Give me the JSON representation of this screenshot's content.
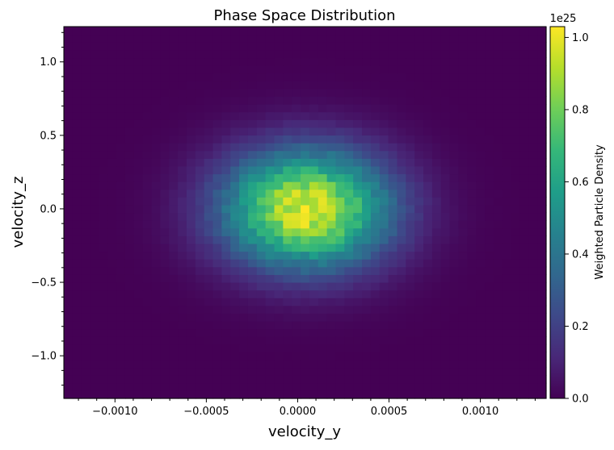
{
  "chart_data": {
    "type": "heatmap",
    "title": "Phase Space Distribution",
    "xlabel": "velocity_y",
    "ylabel": "velocity_z",
    "xlim": [
      -0.00128,
      0.00136
    ],
    "ylim": [
      -1.29,
      1.24
    ],
    "x_ticks": [
      {
        "value": -0.001,
        "label": "−0.0010"
      },
      {
        "value": -0.0005,
        "label": "−0.0005"
      },
      {
        "value": 0.0,
        "label": "0.0000"
      },
      {
        "value": 0.0005,
        "label": "0.0005"
      },
      {
        "value": 0.001,
        "label": "0.0010"
      }
    ],
    "y_ticks": [
      {
        "value": 1.0,
        "label": "1.0"
      },
      {
        "value": 0.5,
        "label": "0.5"
      },
      {
        "value": 0.0,
        "label": "0.0"
      },
      {
        "value": -0.5,
        "label": "−0.5"
      },
      {
        "value": -1.0,
        "label": "−1.0"
      }
    ],
    "grid": false,
    "colormap": "viridis",
    "colorbar": {
      "label": "Weighted Particle Density",
      "offset_label": "1e25",
      "range": [
        0.0,
        1.03
      ],
      "ticks": [
        {
          "value": 0.0,
          "label": "0.0"
        },
        {
          "value": 0.2,
          "label": "0.2"
        },
        {
          "value": 0.4,
          "label": "0.4"
        },
        {
          "value": 0.6,
          "label": "0.6"
        },
        {
          "value": 0.8,
          "label": "0.8"
        },
        {
          "value": 1.0,
          "label": "1.0"
        }
      ]
    },
    "distribution": {
      "shape": "2D Gaussian (sampled histogram)",
      "center_velocity_y": 5e-05,
      "center_velocity_z": 0.0,
      "sigma_velocity_y": 0.00032,
      "sigma_velocity_z": 0.28,
      "peak_density": 1.03,
      "bins_x": 55,
      "bins_y": 48
    }
  }
}
